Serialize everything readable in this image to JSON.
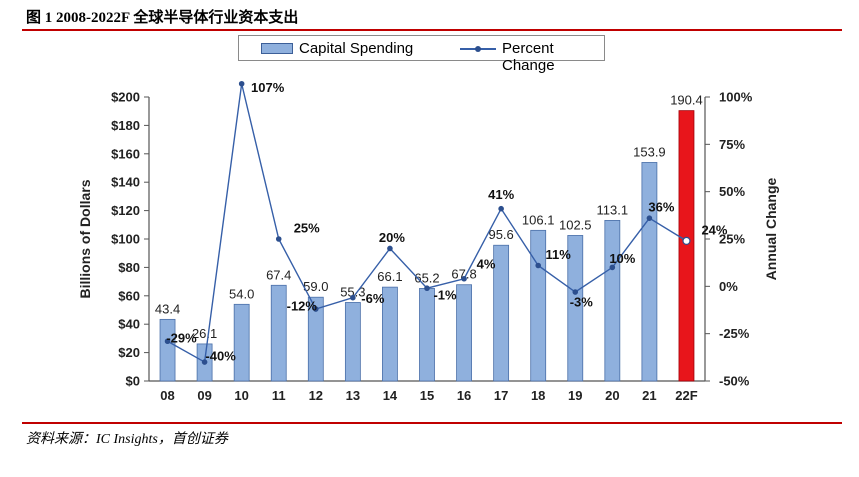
{
  "figure": {
    "title": "图 1 2008-2022F 全球半导体行业资本支出",
    "source": "资料来源：IC Insights，首创证券"
  },
  "chart_data": {
    "type": "bar+line",
    "categories": [
      "08",
      "09",
      "10",
      "11",
      "12",
      "13",
      "14",
      "15",
      "16",
      "17",
      "18",
      "19",
      "20",
      "21",
      "22F"
    ],
    "series": [
      {
        "name": "Capital Spending",
        "type": "bar",
        "axis": "left",
        "values": [
          43.4,
          26.1,
          54.0,
          67.4,
          59.0,
          55.3,
          66.1,
          65.2,
          67.8,
          95.6,
          106.1,
          102.5,
          113.1,
          153.9,
          190.4
        ],
        "value_labels": [
          "43.4",
          "26.1",
          "54.0",
          "67.4",
          "59.0",
          "55.3",
          "66.1",
          "65.2",
          "67.8",
          "95.6",
          "106.1",
          "102.5",
          "113.1",
          "153.9",
          "190.4"
        ],
        "color": "#8fb0dd",
        "highlight_color": "#e8151b",
        "highlight_index": 14
      },
      {
        "name": "Percent Change",
        "type": "line",
        "axis": "right",
        "values": [
          -29,
          -40,
          107,
          25,
          -12,
          -6,
          20,
          -1,
          4,
          41,
          11,
          -3,
          10,
          36,
          24
        ],
        "value_labels": [
          "-29%",
          "-40%",
          "107%",
          "25%",
          "-12%",
          "-6%",
          "20%",
          "-1%",
          "4%",
          "41%",
          "11%",
          "-3%",
          "10%",
          "36%",
          "24%"
        ],
        "color": "#365fa8"
      }
    ],
    "ylabel": "Billions of Dollars",
    "y2label": "Annual Change",
    "ylim": [
      0,
      200
    ],
    "y2lim": [
      -50,
      100
    ],
    "yticks": [
      "$0",
      "$20",
      "$40",
      "$60",
      "$80",
      "$100",
      "$120",
      "$140",
      "$160",
      "$180",
      "$200"
    ],
    "y2ticks": [
      "-50%",
      "-25%",
      "0%",
      "25%",
      "50%",
      "75%",
      "100%"
    ],
    "legend": {
      "placement": "top-center",
      "items": [
        "Capital Spending",
        "Percent Change"
      ]
    },
    "grid": false
  }
}
